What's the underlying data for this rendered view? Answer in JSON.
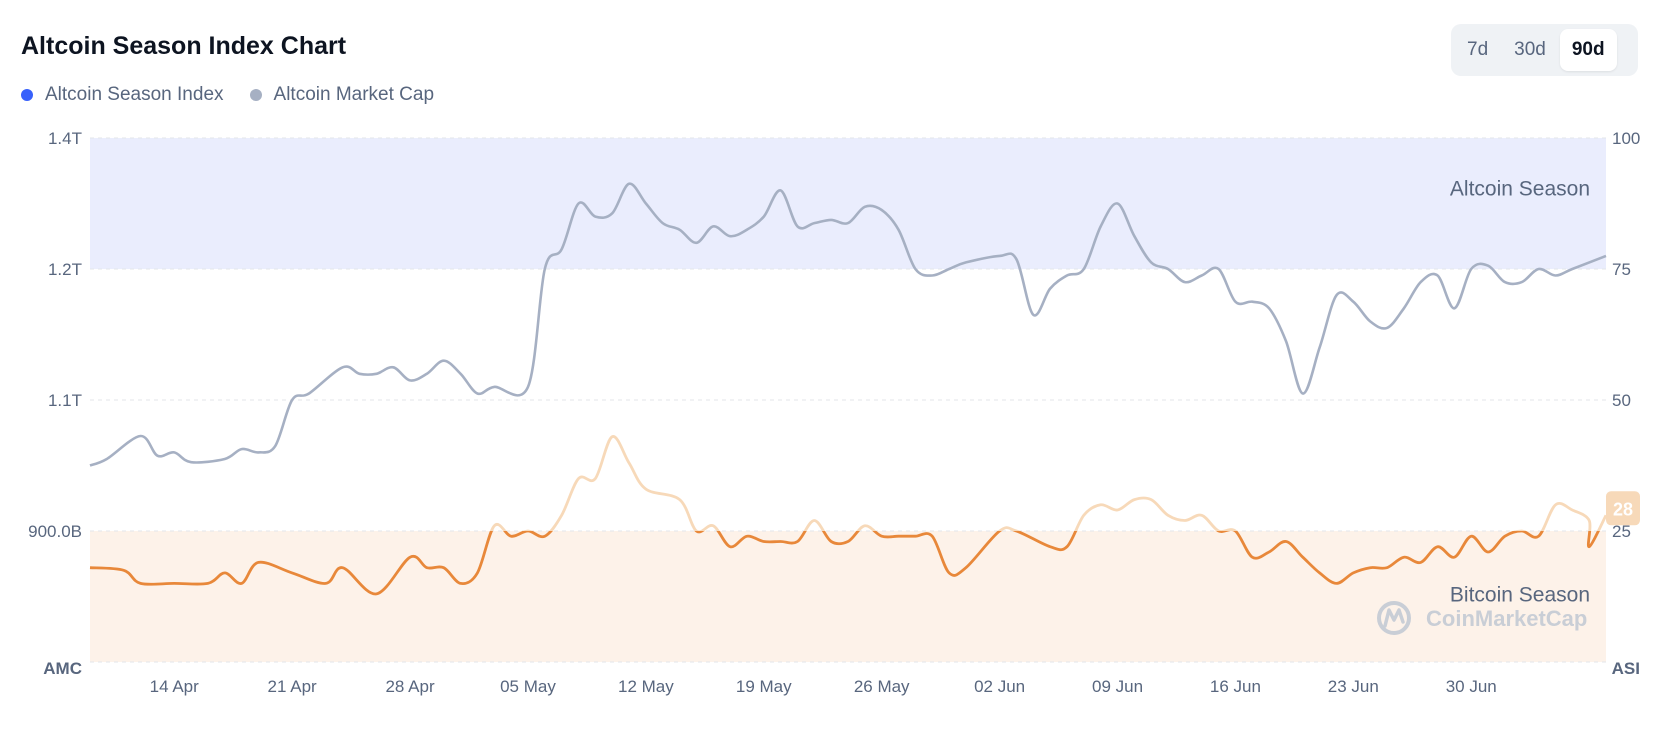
{
  "header": {
    "title": "Altcoin Season Index Chart"
  },
  "legend": [
    {
      "label": "Altcoin Season Index",
      "color": "#3861fb"
    },
    {
      "label": "Altcoin Market Cap",
      "color": "#a6b0c3"
    }
  ],
  "range_buttons": [
    {
      "label": "7d",
      "active": false
    },
    {
      "label": "30d",
      "active": false
    },
    {
      "label": "90d",
      "active": true
    }
  ],
  "colors": {
    "altcoin_zone": "#eaedfd",
    "bitcoin_zone": "#fdf2e9",
    "market_cap_line": "#a6b0c3",
    "index_line": "#e8883a",
    "index_line_faded": "#f7d9b9",
    "badge": "#f7d9b9"
  },
  "watermark": "CoinMarketCap",
  "chart_data": {
    "type": "line",
    "x_start": "2025-04-09",
    "x_end": "2025-07-08",
    "x_tick_labels": [
      "14 Apr",
      "21 Apr",
      "28 Apr",
      "05 May",
      "12 May",
      "19 May",
      "26 May",
      "02 Jun",
      "09 Jun",
      "16 Jun",
      "23 Jun",
      "30 Jun"
    ],
    "x_tick_dates": [
      "2025-04-14",
      "2025-04-21",
      "2025-04-28",
      "2025-05-05",
      "2025-05-12",
      "2025-05-19",
      "2025-05-26",
      "2025-06-02",
      "2025-06-09",
      "2025-06-16",
      "2025-06-23",
      "2025-06-30"
    ],
    "left_axis": {
      "title": "AMC",
      "ticks": [
        "1.4T",
        "1.2T",
        "1.1T",
        "900.0B"
      ]
    },
    "right_axis": {
      "title": "ASI",
      "ticks": [
        "100",
        "75",
        "50",
        "25"
      ],
      "range": [
        0,
        100
      ]
    },
    "zones": {
      "altcoin_season": {
        "label": "Altcoin Season",
        "from": 75,
        "to": 100
      },
      "bitcoin_season": {
        "label": "Bitcoin Season",
        "from": 0,
        "to": 25
      }
    },
    "last_value_badge": "28",
    "series": [
      {
        "name": "Altcoin Season Index",
        "axis": "right",
        "points": [
          [
            "2025-04-09",
            18
          ],
          [
            "2025-04-11",
            17.5
          ],
          [
            "2025-04-12",
            15
          ],
          [
            "2025-04-14",
            15
          ],
          [
            "2025-04-16",
            15
          ],
          [
            "2025-04-17",
            17
          ],
          [
            "2025-04-18",
            15
          ],
          [
            "2025-04-19",
            19
          ],
          [
            "2025-04-21",
            17
          ],
          [
            "2025-04-23",
            15
          ],
          [
            "2025-04-24",
            18
          ],
          [
            "2025-04-26",
            13
          ],
          [
            "2025-04-28",
            20
          ],
          [
            "2025-04-29",
            18
          ],
          [
            "2025-04-30",
            18
          ],
          [
            "2025-05-01",
            15
          ],
          [
            "2025-05-02",
            17
          ],
          [
            "2025-05-03",
            26
          ],
          [
            "2025-05-04",
            24
          ],
          [
            "2025-05-05",
            25
          ],
          [
            "2025-05-06",
            24
          ],
          [
            "2025-05-07",
            28
          ],
          [
            "2025-05-08",
            35
          ],
          [
            "2025-05-09",
            35
          ],
          [
            "2025-05-10",
            43
          ],
          [
            "2025-05-11",
            38
          ],
          [
            "2025-05-12",
            33
          ],
          [
            "2025-05-14",
            31
          ],
          [
            "2025-05-15",
            25
          ],
          [
            "2025-05-16",
            26
          ],
          [
            "2025-05-17",
            22
          ],
          [
            "2025-05-18",
            24
          ],
          [
            "2025-05-19",
            23
          ],
          [
            "2025-05-20",
            23
          ],
          [
            "2025-05-21",
            23
          ],
          [
            "2025-05-22",
            27
          ],
          [
            "2025-05-23",
            23
          ],
          [
            "2025-05-24",
            23
          ],
          [
            "2025-05-25",
            26
          ],
          [
            "2025-05-26",
            24
          ],
          [
            "2025-05-27",
            24
          ],
          [
            "2025-05-28",
            24
          ],
          [
            "2025-05-29",
            24
          ],
          [
            "2025-05-30",
            17
          ],
          [
            "2025-05-31",
            18
          ],
          [
            "2025-06-02",
            25
          ],
          [
            "2025-06-03",
            25
          ],
          [
            "2025-06-05",
            22
          ],
          [
            "2025-06-06",
            22
          ],
          [
            "2025-06-07",
            28
          ],
          [
            "2025-06-08",
            30
          ],
          [
            "2025-06-09",
            29
          ],
          [
            "2025-06-10",
            31
          ],
          [
            "2025-06-11",
            31
          ],
          [
            "2025-06-12",
            28
          ],
          [
            "2025-06-13",
            27
          ],
          [
            "2025-06-14",
            28
          ],
          [
            "2025-06-15",
            25
          ],
          [
            "2025-06-16",
            25
          ],
          [
            "2025-06-17",
            20
          ],
          [
            "2025-06-18",
            21
          ],
          [
            "2025-06-19",
            23
          ],
          [
            "2025-06-20",
            20
          ],
          [
            "2025-06-21",
            17
          ],
          [
            "2025-06-22",
            15
          ],
          [
            "2025-06-23",
            17
          ],
          [
            "2025-06-24",
            18
          ],
          [
            "2025-06-25",
            18
          ],
          [
            "2025-06-26",
            20
          ],
          [
            "2025-06-27",
            19
          ],
          [
            "2025-06-28",
            22
          ],
          [
            "2025-06-29",
            20
          ],
          [
            "2025-06-30",
            24
          ],
          [
            "2025-07-01",
            21
          ],
          [
            "2025-07-02",
            24
          ],
          [
            "2025-07-03",
            25
          ],
          [
            "2025-07-04",
            24
          ],
          [
            "2025-07-05",
            30
          ],
          [
            "2025-07-06",
            29
          ],
          [
            "2025-07-07",
            27
          ],
          [
            "2025-07-07",
            22
          ],
          [
            "2025-07-08",
            28
          ]
        ]
      },
      {
        "name": "Altcoin Market Cap",
        "axis": "left",
        "points": [
          [
            "2025-04-09",
            1.0
          ],
          [
            "2025-04-10",
            1.01
          ],
          [
            "2025-04-12",
            1.045
          ],
          [
            "2025-04-13",
            1.015
          ],
          [
            "2025-04-14",
            1.02
          ],
          [
            "2025-04-15",
            1.005
          ],
          [
            "2025-04-17",
            1.01
          ],
          [
            "2025-04-18",
            1.025
          ],
          [
            "2025-04-19",
            1.02
          ],
          [
            "2025-04-20",
            1.03
          ],
          [
            "2025-04-21",
            1.1
          ],
          [
            "2025-04-22",
            1.105
          ],
          [
            "2025-04-24",
            1.125
          ],
          [
            "2025-04-25",
            1.12
          ],
          [
            "2025-04-26",
            1.12
          ],
          [
            "2025-04-27",
            1.125
          ],
          [
            "2025-04-28",
            1.115
          ],
          [
            "2025-04-29",
            1.12
          ],
          [
            "2025-04-30",
            1.13
          ],
          [
            "2025-05-01",
            1.12
          ],
          [
            "2025-05-02",
            1.105
          ],
          [
            "2025-05-03",
            1.11
          ],
          [
            "2025-05-05",
            1.11
          ],
          [
            "2025-05-06",
            1.2
          ],
          [
            "2025-05-07",
            1.23
          ],
          [
            "2025-05-08",
            1.3
          ],
          [
            "2025-05-09",
            1.28
          ],
          [
            "2025-05-10",
            1.285
          ],
          [
            "2025-05-11",
            1.33
          ],
          [
            "2025-05-12",
            1.3
          ],
          [
            "2025-05-13",
            1.27
          ],
          [
            "2025-05-14",
            1.26
          ],
          [
            "2025-05-15",
            1.24
          ],
          [
            "2025-05-16",
            1.265
          ],
          [
            "2025-05-17",
            1.25
          ],
          [
            "2025-05-18",
            1.26
          ],
          [
            "2025-05-19",
            1.28
          ],
          [
            "2025-05-20",
            1.32
          ],
          [
            "2025-05-21",
            1.265
          ],
          [
            "2025-05-22",
            1.27
          ],
          [
            "2025-05-23",
            1.275
          ],
          [
            "2025-05-24",
            1.27
          ],
          [
            "2025-05-25",
            1.295
          ],
          [
            "2025-05-26",
            1.29
          ],
          [
            "2025-05-27",
            1.26
          ],
          [
            "2025-05-28",
            1.2
          ],
          [
            "2025-05-29",
            1.195
          ],
          [
            "2025-05-30",
            1.2
          ],
          [
            "2025-05-31",
            1.21
          ],
          [
            "2025-06-02",
            1.22
          ],
          [
            "2025-06-03",
            1.215
          ],
          [
            "2025-06-04",
            1.165
          ],
          [
            "2025-06-05",
            1.185
          ],
          [
            "2025-06-06",
            1.195
          ],
          [
            "2025-06-07",
            1.2
          ],
          [
            "2025-06-08",
            1.265
          ],
          [
            "2025-06-09",
            1.3
          ],
          [
            "2025-06-10",
            1.25
          ],
          [
            "2025-06-11",
            1.21
          ],
          [
            "2025-06-12",
            1.2
          ],
          [
            "2025-06-13",
            1.19
          ],
          [
            "2025-06-14",
            1.195
          ],
          [
            "2025-06-15",
            1.2
          ],
          [
            "2025-06-16",
            1.175
          ],
          [
            "2025-06-17",
            1.175
          ],
          [
            "2025-06-18",
            1.17
          ],
          [
            "2025-06-19",
            1.145
          ],
          [
            "2025-06-20",
            1.105
          ],
          [
            "2025-06-21",
            1.14
          ],
          [
            "2025-06-22",
            1.18
          ],
          [
            "2025-06-23",
            1.175
          ],
          [
            "2025-06-24",
            1.16
          ],
          [
            "2025-06-25",
            1.155
          ],
          [
            "2025-06-26",
            1.17
          ],
          [
            "2025-06-27",
            1.19
          ],
          [
            "2025-06-28",
            1.195
          ],
          [
            "2025-06-29",
            1.17
          ],
          [
            "2025-06-30",
            1.2
          ],
          [
            "2025-07-01",
            1.205
          ],
          [
            "2025-07-02",
            1.19
          ],
          [
            "2025-07-03",
            1.19
          ],
          [
            "2025-07-04",
            1.2
          ],
          [
            "2025-07-05",
            1.195
          ],
          [
            "2025-07-06",
            1.2
          ],
          [
            "2025-07-08",
            1.22
          ]
        ]
      }
    ]
  }
}
